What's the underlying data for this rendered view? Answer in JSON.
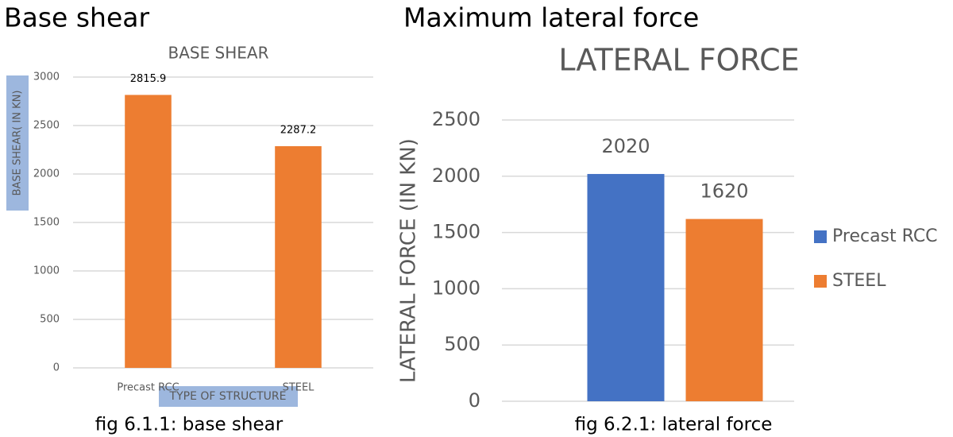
{
  "chart_data": [
    {
      "type": "bar",
      "heading": "Base shear",
      "title": "BASE SHEAR",
      "y_label": "BASE SHEAR( IN KN)",
      "x_label": "TYPE OF STRUCTURE",
      "categories": [
        "Precast RCC",
        "STEEL"
      ],
      "values": [
        2815.9,
        2287.2
      ],
      "color": "#ed7d31",
      "ylim": [
        0,
        3000
      ],
      "yticks": [
        0,
        500,
        1000,
        1500,
        2000,
        2500,
        3000
      ],
      "grid": true,
      "caption": "fig 6.1.1: base shear"
    },
    {
      "type": "grouped_bar",
      "heading": "Maximum lateral force",
      "title": "LATERAL FORCE",
      "y_label": "LATERAL FORCE (IN KN)",
      "categories": [
        null
      ],
      "series": [
        {
          "name": "Precast RCC",
          "color": "#4472c4",
          "values": [
            2020
          ]
        },
        {
          "name": "STEEL",
          "color": "#ed7d31",
          "values": [
            1620
          ]
        }
      ],
      "ylim": [
        0,
        2500
      ],
      "yticks": [
        0,
        500,
        1000,
        1500,
        2000,
        2500
      ],
      "grid": true,
      "legend": "right",
      "caption": "fig 6.2.1: lateral force"
    }
  ]
}
